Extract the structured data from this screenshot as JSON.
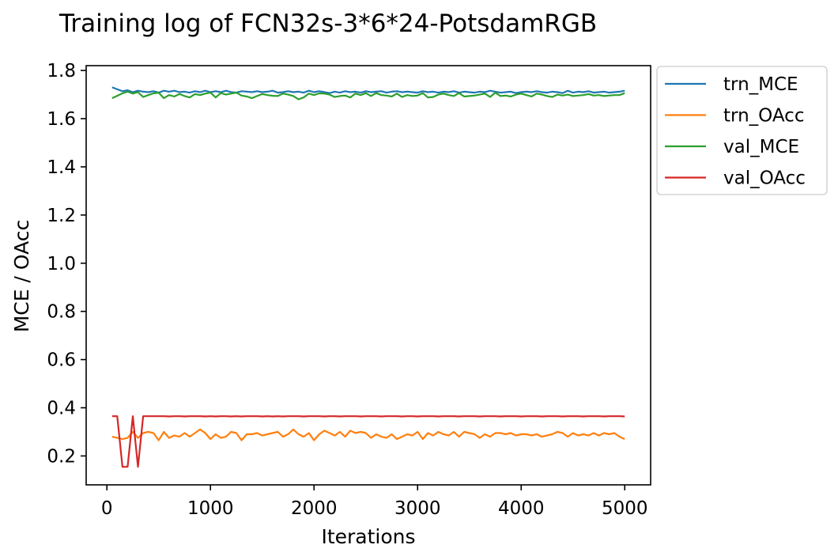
{
  "chart_data": {
    "type": "line",
    "title": "Training log of FCN32s-3*6*24-PotsdamRGB",
    "xlabel": "Iterations",
    "ylabel": "MCE / OAcc",
    "xlim": [
      -200,
      5250
    ],
    "ylim": [
      0.08,
      1.82
    ],
    "xticks": [
      0,
      1000,
      2000,
      3000,
      4000,
      5000
    ],
    "yticks": [
      0.2,
      0.4,
      0.6,
      0.8,
      1.0,
      1.2,
      1.4,
      1.6,
      1.8
    ],
    "xtick_labels": [
      "0",
      "1000",
      "2000",
      "3000",
      "4000",
      "5000"
    ],
    "ytick_labels": [
      "0.2",
      "0.4",
      "0.6",
      "0.8",
      "1.0",
      "1.2",
      "1.4",
      "1.6",
      "1.8"
    ],
    "grid": false,
    "legend_position": "outside-top-right",
    "x": [
      50,
      100,
      150,
      200,
      250,
      300,
      350,
      400,
      450,
      500,
      550,
      600,
      650,
      700,
      750,
      800,
      850,
      900,
      950,
      1000,
      1050,
      1100,
      1150,
      1200,
      1250,
      1300,
      1350,
      1400,
      1450,
      1500,
      1550,
      1600,
      1650,
      1700,
      1750,
      1800,
      1850,
      1900,
      1950,
      2000,
      2050,
      2100,
      2150,
      2200,
      2250,
      2300,
      2350,
      2400,
      2450,
      2500,
      2550,
      2600,
      2650,
      2700,
      2750,
      2800,
      2850,
      2900,
      2950,
      3000,
      3050,
      3100,
      3150,
      3200,
      3250,
      3300,
      3350,
      3400,
      3450,
      3500,
      3550,
      3600,
      3650,
      3700,
      3750,
      3800,
      3850,
      3900,
      3950,
      4000,
      4050,
      4100,
      4150,
      4200,
      4250,
      4300,
      4350,
      4400,
      4450,
      4500,
      4550,
      4600,
      4650,
      4700,
      4750,
      4800,
      4850,
      4900,
      4950,
      5000
    ],
    "series": [
      {
        "name": "trn_MCE",
        "color": "#1f77b4",
        "values": [
          1.73,
          1.722,
          1.714,
          1.718,
          1.71,
          1.716,
          1.712,
          1.71,
          1.714,
          1.708,
          1.716,
          1.712,
          1.716,
          1.71,
          1.712,
          1.708,
          1.714,
          1.71,
          1.716,
          1.71,
          1.714,
          1.71,
          1.716,
          1.71,
          1.708,
          1.714,
          1.712,
          1.71,
          1.714,
          1.71,
          1.712,
          1.716,
          1.708,
          1.71,
          1.714,
          1.71,
          1.712,
          1.708,
          1.716,
          1.71,
          1.714,
          1.71,
          1.706,
          1.712,
          1.708,
          1.714,
          1.71,
          1.712,
          1.708,
          1.714,
          1.71,
          1.712,
          1.714,
          1.708,
          1.712,
          1.714,
          1.71,
          1.712,
          1.71,
          1.708,
          1.714,
          1.71,
          1.712,
          1.708,
          1.712,
          1.71,
          1.714,
          1.708,
          1.712,
          1.71,
          1.708,
          1.712,
          1.71,
          1.716,
          1.712,
          1.708,
          1.71,
          1.712,
          1.706,
          1.71,
          1.712,
          1.71,
          1.714,
          1.71,
          1.708,
          1.712,
          1.71,
          1.706,
          1.716,
          1.708,
          1.712,
          1.71,
          1.714,
          1.708,
          1.71,
          1.712,
          1.708,
          1.71,
          1.712,
          1.716
        ]
      },
      {
        "name": "trn_OAcc",
        "color": "#ff7f0e",
        "values": [
          0.28,
          0.275,
          0.27,
          0.275,
          0.3,
          0.275,
          0.295,
          0.3,
          0.295,
          0.265,
          0.3,
          0.275,
          0.285,
          0.28,
          0.295,
          0.28,
          0.295,
          0.31,
          0.295,
          0.27,
          0.29,
          0.275,
          0.28,
          0.3,
          0.295,
          0.265,
          0.29,
          0.29,
          0.295,
          0.285,
          0.29,
          0.295,
          0.3,
          0.28,
          0.29,
          0.31,
          0.29,
          0.28,
          0.295,
          0.265,
          0.29,
          0.305,
          0.295,
          0.285,
          0.3,
          0.28,
          0.305,
          0.295,
          0.3,
          0.295,
          0.275,
          0.29,
          0.28,
          0.275,
          0.29,
          0.27,
          0.28,
          0.29,
          0.285,
          0.3,
          0.27,
          0.295,
          0.285,
          0.3,
          0.29,
          0.285,
          0.3,
          0.28,
          0.3,
          0.295,
          0.29,
          0.275,
          0.29,
          0.28,
          0.295,
          0.295,
          0.29,
          0.295,
          0.285,
          0.29,
          0.29,
          0.285,
          0.29,
          0.28,
          0.285,
          0.29,
          0.3,
          0.295,
          0.28,
          0.295,
          0.285,
          0.29,
          0.285,
          0.295,
          0.285,
          0.295,
          0.29,
          0.295,
          0.28,
          0.27
        ]
      },
      {
        "name": "val_MCE",
        "color": "#2ca02c",
        "values": [
          1.685,
          1.695,
          1.705,
          1.712,
          1.704,
          1.71,
          1.69,
          1.698,
          1.705,
          1.708,
          1.685,
          1.698,
          1.692,
          1.702,
          1.694,
          1.688,
          1.702,
          1.698,
          1.704,
          1.708,
          1.688,
          1.706,
          1.7,
          1.704,
          1.708,
          1.696,
          1.692,
          1.685,
          1.694,
          1.702,
          1.698,
          1.695,
          1.694,
          1.704,
          1.7,
          1.694,
          1.68,
          1.688,
          1.704,
          1.698,
          1.705,
          1.704,
          1.7,
          1.69,
          1.694,
          1.696,
          1.688,
          1.704,
          1.698,
          1.706,
          1.694,
          1.706,
          1.698,
          1.696,
          1.692,
          1.704,
          1.69,
          1.698,
          1.694,
          1.696,
          1.706,
          1.688,
          1.69,
          1.7,
          1.704,
          1.698,
          1.694,
          1.706,
          1.692,
          1.694,
          1.696,
          1.7,
          1.704,
          1.69,
          1.708,
          1.694,
          1.696,
          1.692,
          1.7,
          1.704,
          1.698,
          1.692,
          1.704,
          1.7,
          1.694,
          1.69,
          1.7,
          1.696,
          1.7,
          1.694,
          1.696,
          1.698,
          1.702,
          1.696,
          1.698,
          1.694,
          1.696,
          1.698,
          1.698,
          1.706
        ]
      },
      {
        "name": "val_OAcc",
        "color": "#d62728",
        "values": [
          0.365,
          0.365,
          0.155,
          0.155,
          0.365,
          0.155,
          0.365,
          0.365,
          0.365,
          0.365,
          0.365,
          0.364,
          0.365,
          0.365,
          0.364,
          0.365,
          0.365,
          0.365,
          0.364,
          0.365,
          0.364,
          0.365,
          0.365,
          0.364,
          0.365,
          0.364,
          0.365,
          0.365,
          0.365,
          0.364,
          0.365,
          0.364,
          0.365,
          0.364,
          0.365,
          0.365,
          0.365,
          0.364,
          0.365,
          0.365,
          0.365,
          0.364,
          0.365,
          0.365,
          0.364,
          0.365,
          0.365,
          0.365,
          0.364,
          0.365,
          0.365,
          0.365,
          0.364,
          0.365,
          0.365,
          0.365,
          0.364,
          0.365,
          0.365,
          0.364,
          0.365,
          0.365,
          0.365,
          0.364,
          0.365,
          0.365,
          0.365,
          0.364,
          0.365,
          0.365,
          0.365,
          0.364,
          0.365,
          0.365,
          0.365,
          0.364,
          0.365,
          0.365,
          0.365,
          0.364,
          0.365,
          0.365,
          0.365,
          0.364,
          0.365,
          0.365,
          0.365,
          0.364,
          0.365,
          0.365,
          0.365,
          0.364,
          0.365,
          0.365,
          0.365,
          0.364,
          0.365,
          0.365,
          0.365,
          0.364
        ]
      }
    ]
  }
}
